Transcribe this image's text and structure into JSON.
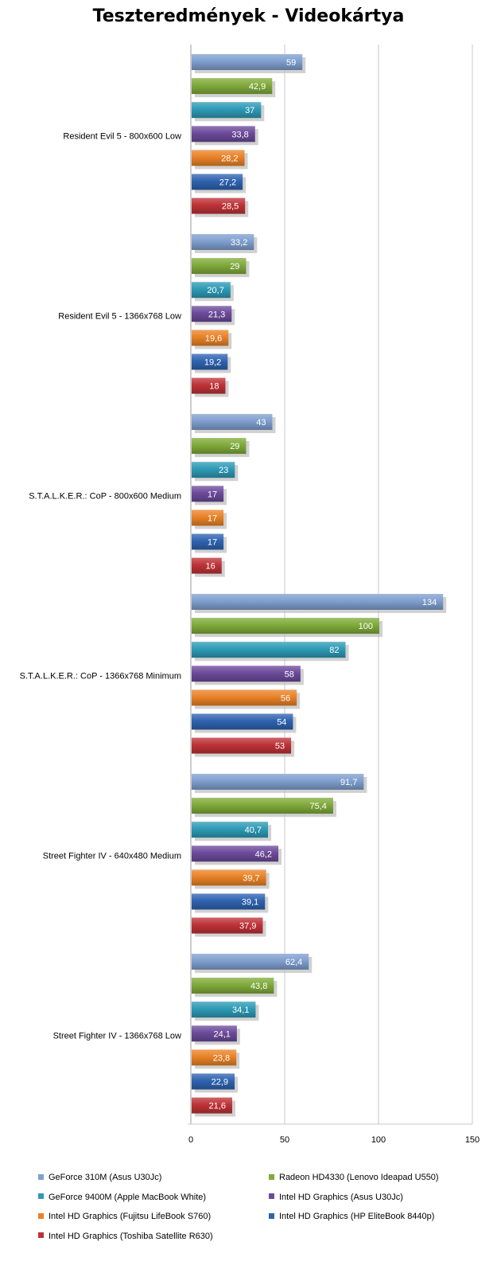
{
  "chart_data": {
    "type": "bar",
    "orientation": "horizontal",
    "title": "Teszteredmények - Videokártya",
    "xlim": [
      0,
      150
    ],
    "x_ticks": [
      "0",
      "50",
      "100",
      "150"
    ],
    "grid": "vertical",
    "legend_position": "bottom",
    "categories": [
      "Resident Evil 5 - 800x600 Low",
      "Resident Evil 5 - 1366x768 Low",
      "S.T.A.L.K.E.R.: CoP - 800x600 Medium",
      "S.T.A.L.K.E.R.: CoP - 1366x768 Minimum",
      "Street Fighter IV - 640x480 Medium",
      "Street Fighter IV - 1366x768 Low"
    ],
    "series": [
      {
        "name": "GeForce 310M (Asus U30Jc)",
        "color": "#7f9fcf",
        "values": [
          59,
          33.2,
          43,
          134,
          91.7,
          62.4
        ],
        "labels": [
          "59",
          "33,2",
          "43",
          "134",
          "91,7",
          "62,4"
        ]
      },
      {
        "name": "Radeon HD4330 (Lenovo Ideapad U550)",
        "color": "#7faa3a",
        "values": [
          42.9,
          29,
          29,
          100,
          75.4,
          43.8
        ],
        "labels": [
          "42,9",
          "29",
          "29",
          "100",
          "75,4",
          "43,8"
        ]
      },
      {
        "name": "GeForce 9400M (Apple MacBook White)",
        "color": "#2d9ab5",
        "values": [
          37,
          20.7,
          23,
          82,
          40.7,
          34.1
        ],
        "labels": [
          "37",
          "20,7",
          "23",
          "82",
          "40,7",
          "34,1"
        ]
      },
      {
        "name": "Intel HD Graphics (Asus U30Jc)",
        "color": "#6c4a9b",
        "values": [
          33.8,
          21.3,
          17,
          58,
          46.2,
          24.1
        ],
        "labels": [
          "33,8",
          "21,3",
          "17",
          "58",
          "46,2",
          "24,1"
        ]
      },
      {
        "name": "Intel HD Graphics (Fujitsu LifeBook S760)",
        "color": "#e98227",
        "values": [
          28.2,
          19.6,
          17,
          56,
          39.7,
          23.8
        ],
        "labels": [
          "28,2",
          "19,6",
          "17",
          "56",
          "39,7",
          "23,8"
        ]
      },
      {
        "name": "Intel HD Graphics (HP EliteBook 8440p)",
        "color": "#2f63b0",
        "values": [
          27.2,
          19.2,
          17,
          54,
          39.1,
          22.9
        ],
        "labels": [
          "27,2",
          "19,2",
          "17",
          "54",
          "39,1",
          "22,9"
        ]
      },
      {
        "name": "Intel HD Graphics (Toshiba Satellite R630)",
        "color": "#be3237",
        "values": [
          28.5,
          18,
          16,
          53,
          37.9,
          21.6
        ],
        "labels": [
          "28,5",
          "18",
          "16",
          "53",
          "37,9",
          "21,6"
        ]
      }
    ]
  }
}
